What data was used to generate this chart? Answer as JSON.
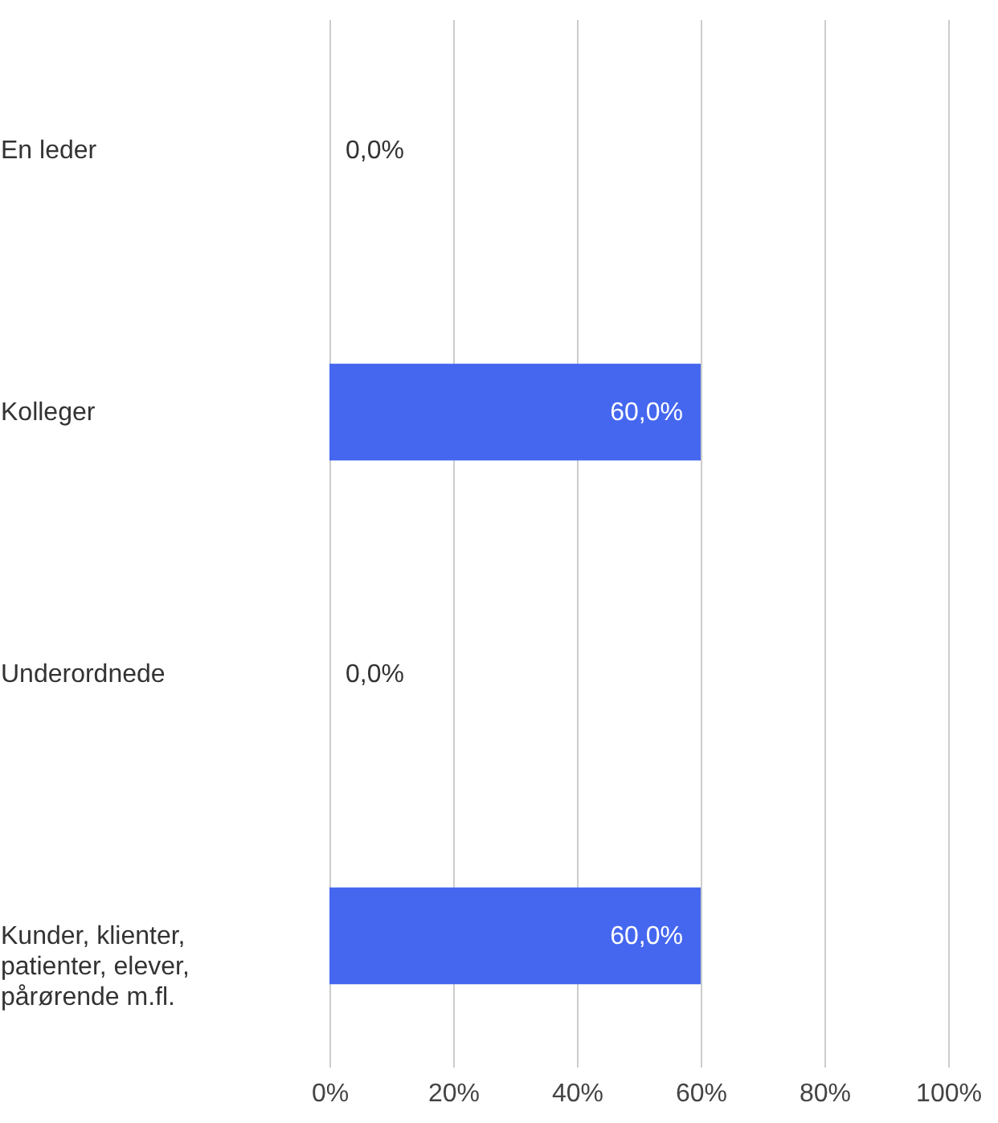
{
  "chart_data": {
    "type": "bar",
    "orientation": "horizontal",
    "categories": [
      "En leder",
      "Kolleger",
      "Underordnede",
      "Kunder, klienter, patienter, elever, pårørende m.fl."
    ],
    "values": [
      0,
      60,
      0,
      60
    ],
    "color": "#4567f0",
    "value_labels": [
      "0,0%",
      "60,0%",
      "0,0%",
      "60,0%"
    ],
    "xlim": [
      0,
      100
    ],
    "xticks": [
      {
        "value": 0,
        "label": "0%"
      },
      {
        "value": 20,
        "label": "20%"
      },
      {
        "value": 40,
        "label": "40%"
      },
      {
        "value": 60,
        "label": "60%"
      },
      {
        "value": 80,
        "label": "80%"
      },
      {
        "value": 100,
        "label": "100%"
      }
    ],
    "grid": "x"
  }
}
